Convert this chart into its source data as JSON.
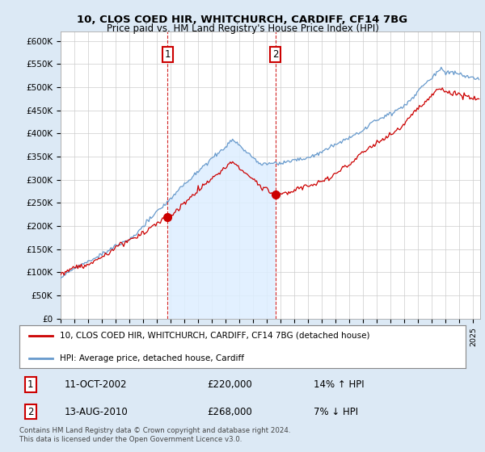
{
  "title1": "10, CLOS COED HIR, WHITCHURCH, CARDIFF, CF14 7BG",
  "title2": "Price paid vs. HM Land Registry's House Price Index (HPI)",
  "ylabel_ticks": [
    "£0",
    "£50K",
    "£100K",
    "£150K",
    "£200K",
    "£250K",
    "£300K",
    "£350K",
    "£400K",
    "£450K",
    "£500K",
    "£550K",
    "£600K"
  ],
  "ytick_values": [
    0,
    50000,
    100000,
    150000,
    200000,
    250000,
    300000,
    350000,
    400000,
    450000,
    500000,
    550000,
    600000
  ],
  "ylim": [
    0,
    620000
  ],
  "xlim_start": 1995.0,
  "xlim_end": 2025.5,
  "sale1_x": 2002.78,
  "sale1_y": 220000,
  "sale1_label": "1",
  "sale1_date": "11-OCT-2002",
  "sale1_price": "£220,000",
  "sale1_hpi": "14% ↑ HPI",
  "sale2_x": 2010.62,
  "sale2_y": 268000,
  "sale2_label": "2",
  "sale2_date": "13-AUG-2010",
  "sale2_price": "£268,000",
  "sale2_hpi": "7% ↓ HPI",
  "line1_color": "#cc0000",
  "line2_color": "#6699cc",
  "fill2_color": "#ddeeff",
  "vline_color": "#cc0000",
  "legend1_label": "10, CLOS COED HIR, WHITCHURCH, CARDIFF, CF14 7BG (detached house)",
  "legend2_label": "HPI: Average price, detached house, Cardiff",
  "footnote": "Contains HM Land Registry data © Crown copyright and database right 2024.\nThis data is licensed under the Open Government Licence v3.0.",
  "background_color": "#dce9f5",
  "plot_bg_color": "#ffffff"
}
